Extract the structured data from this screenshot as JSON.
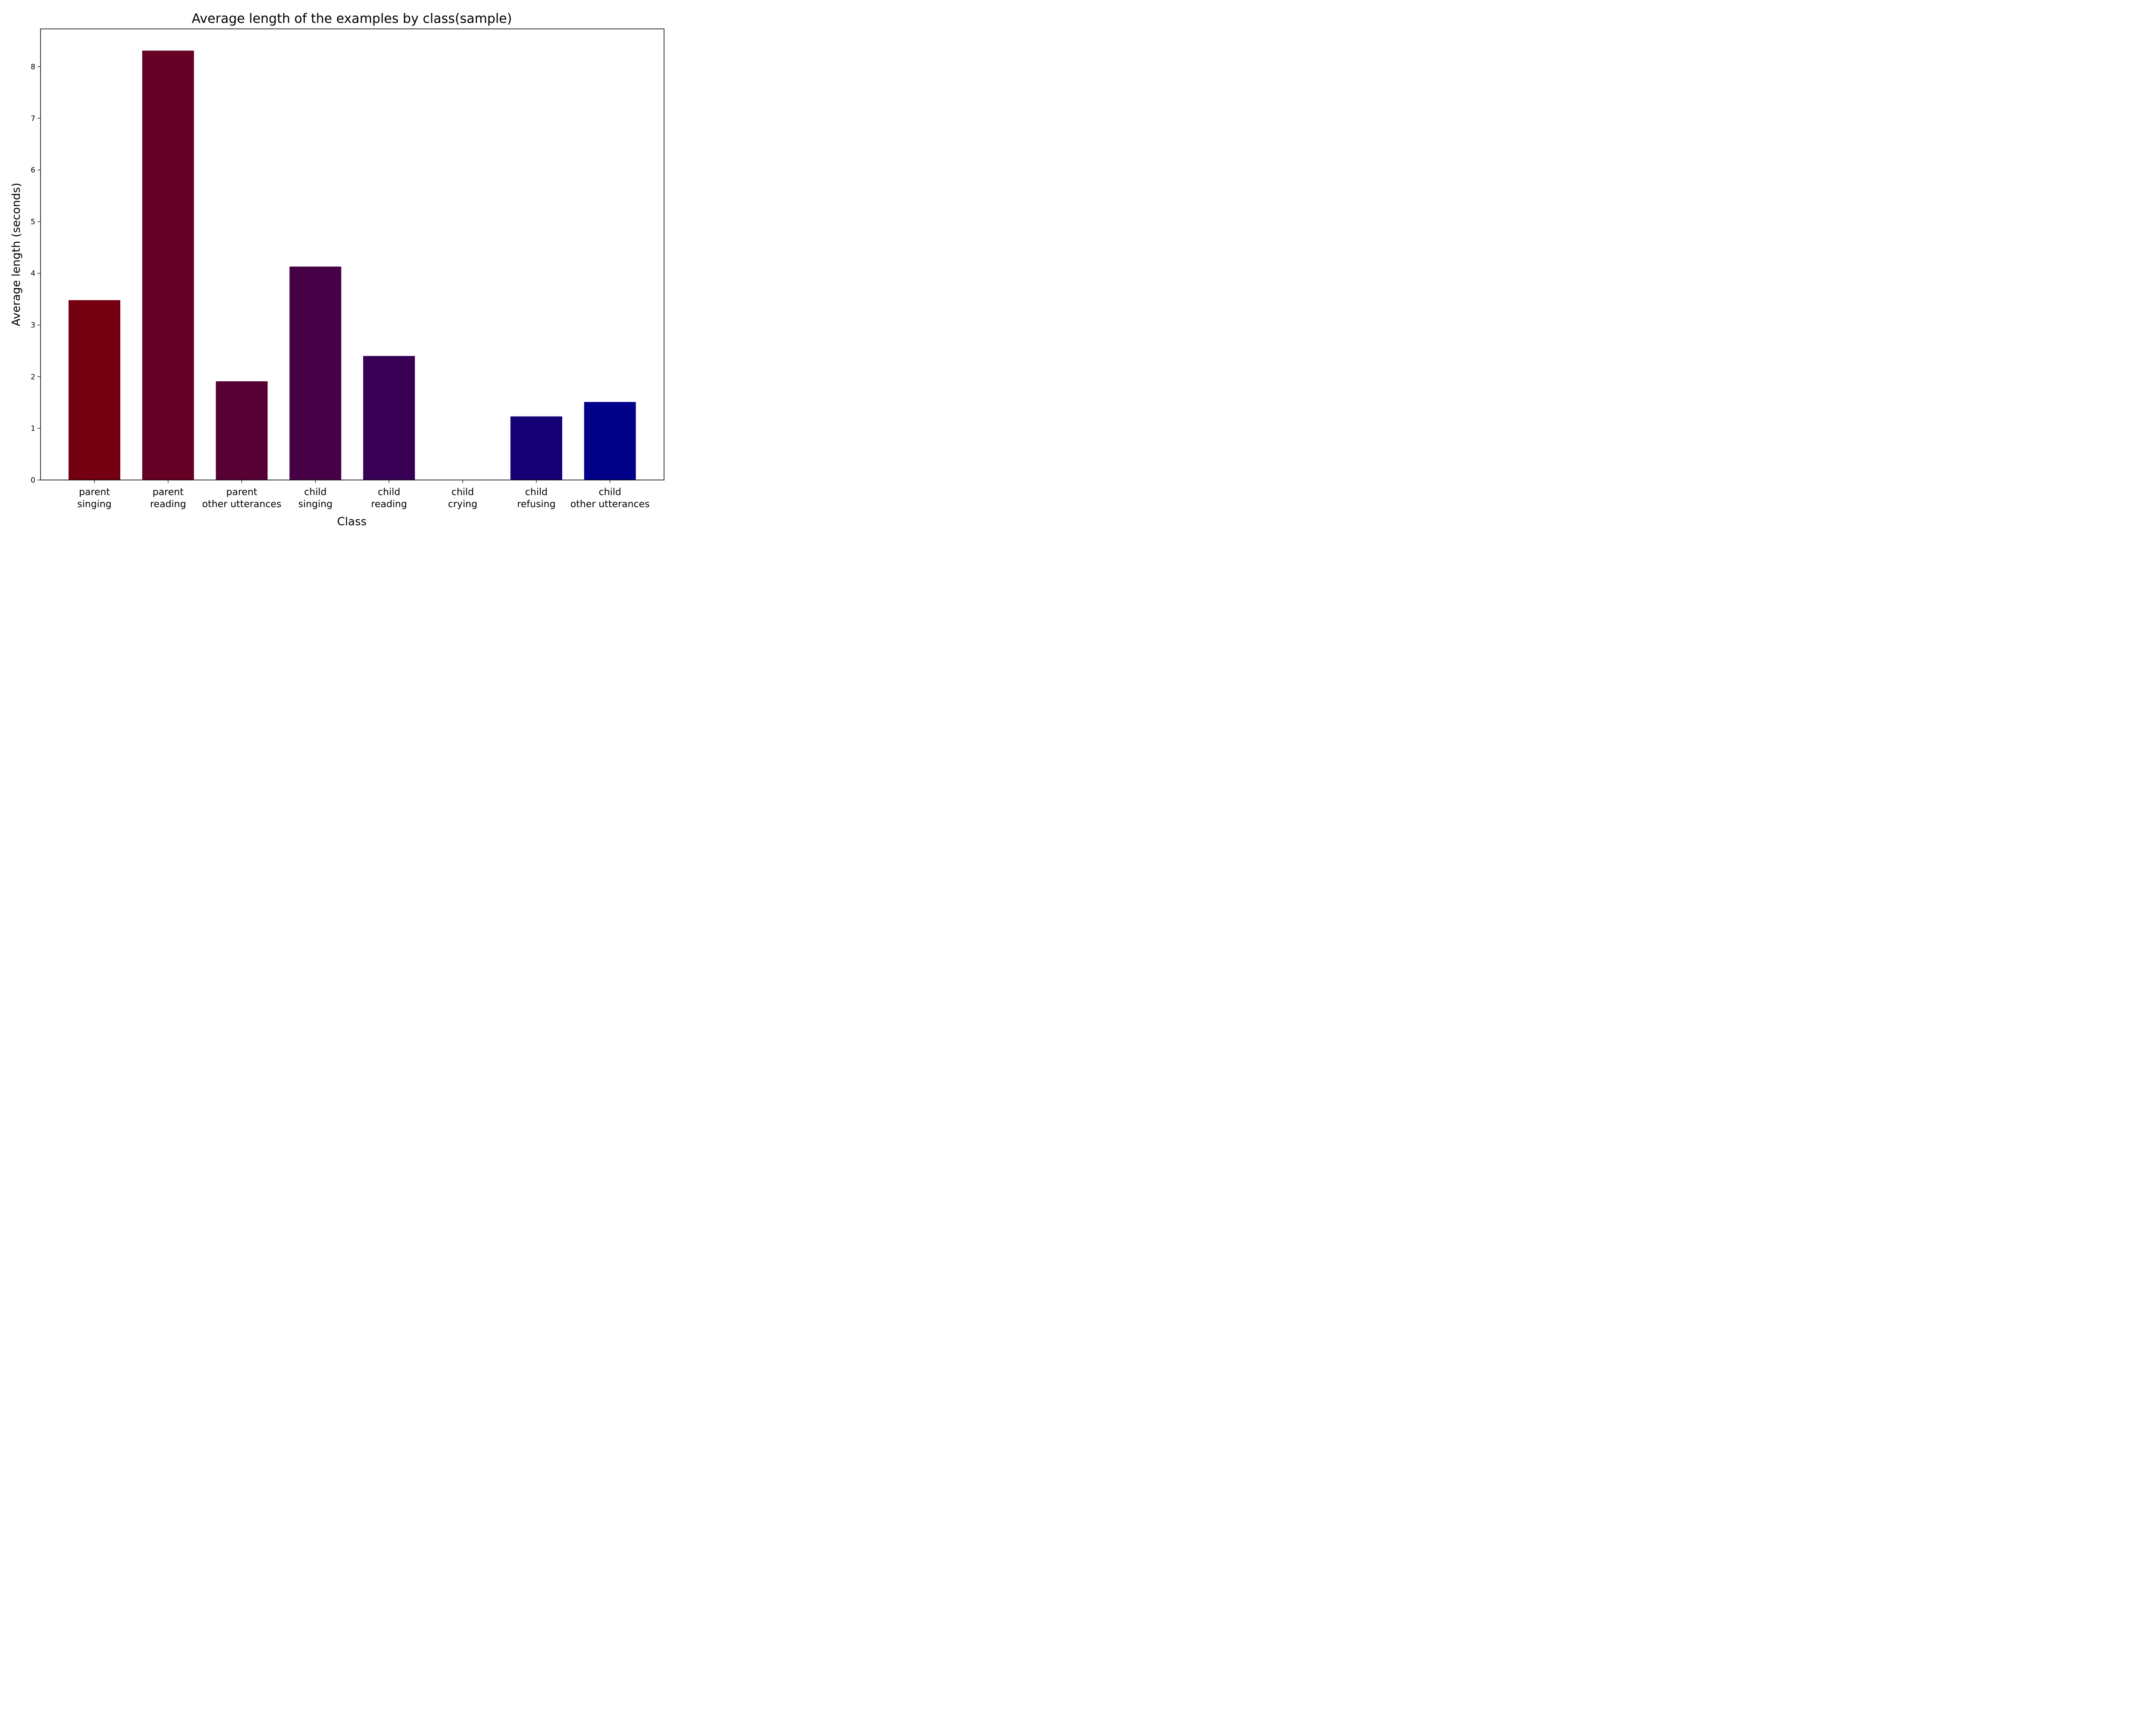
{
  "chart_data": {
    "type": "bar",
    "title": "Average length of the examples by class(sample)",
    "xlabel": "Class",
    "ylabel": "Average length (seconds)",
    "categories": [
      [
        "parent",
        "singing"
      ],
      [
        "parent",
        "reading"
      ],
      [
        "parent",
        "other utterances"
      ],
      [
        "child",
        "singing"
      ],
      [
        "child",
        "reading"
      ],
      [
        "child",
        "crying"
      ],
      [
        "child",
        "refusing"
      ],
      [
        "child",
        "other utterances"
      ]
    ],
    "values": [
      3.48,
      8.31,
      1.91,
      4.13,
      2.4,
      0,
      1.23,
      1.51
    ],
    "colors": [
      "#750011",
      "#660024",
      "#560034",
      "#460045",
      "#370054",
      "#260064",
      "#150075",
      "#000088"
    ],
    "ylim": [
      0,
      8.73
    ],
    "yticks": [
      0,
      1,
      2,
      3,
      4,
      5,
      6,
      7,
      8
    ],
    "grid": false,
    "legend": "none"
  }
}
